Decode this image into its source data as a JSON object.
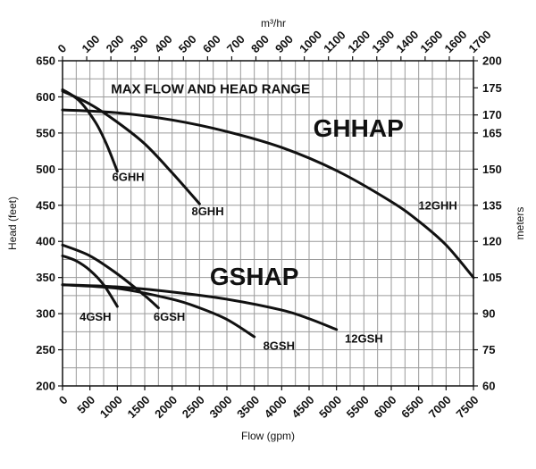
{
  "chart_data": {
    "type": "line",
    "title": "MAX FLOW AND HEAD RANGE",
    "xlabel": "Flow (gpm)",
    "ylabel": "Head (feet)",
    "x2label": "m³/hr",
    "y2label": "meters",
    "xlim": [
      0,
      7500
    ],
    "ylim": [
      200,
      650
    ],
    "x2lim": [
      0,
      1700
    ],
    "y2lim": [
      60,
      200
    ],
    "x_ticks": [
      "0",
      "500",
      "1000",
      "1500",
      "2000",
      "2500",
      "3000",
      "3500",
      "4000",
      "4500",
      "5000",
      "5500",
      "6000",
      "6500",
      "7000",
      "7500"
    ],
    "y_ticks": [
      "200",
      "250",
      "300",
      "350",
      "400",
      "450",
      "500",
      "550",
      "600",
      "650"
    ],
    "x2_ticks": [
      "0",
      "100",
      "200",
      "300",
      "400",
      "500",
      "600",
      "700",
      "800",
      "900",
      "1000",
      "1100",
      "1200",
      "1300",
      "1400",
      "1500",
      "1600",
      "1700"
    ],
    "y2_ticks": [
      "60",
      "75",
      "90",
      "105",
      "120",
      "135",
      "150",
      "165",
      "170",
      "175",
      "200"
    ],
    "grid": true,
    "series": [
      {
        "name": "6GHH",
        "x": [
          0,
          300,
          600,
          800,
          1000
        ],
        "y": [
          610,
          595,
          565,
          535,
          497
        ]
      },
      {
        "name": "8GHH",
        "x": [
          0,
          500,
          1000,
          1500,
          2000,
          2500
        ],
        "y": [
          608,
          590,
          565,
          535,
          495,
          452
        ]
      },
      {
        "name": "12GHH",
        "x": [
          0,
          1000,
          2000,
          3000,
          4000,
          5000,
          6000,
          6500,
          7000,
          7500
        ],
        "y": [
          582,
          578,
          568,
          552,
          530,
          498,
          455,
          428,
          395,
          350
        ]
      },
      {
        "name": "4GSH",
        "x": [
          0,
          250,
          500,
          750,
          1000
        ],
        "y": [
          380,
          373,
          360,
          340,
          310
        ]
      },
      {
        "name": "6GSH",
        "x": [
          0,
          500,
          1000,
          1500,
          1750
        ],
        "y": [
          395,
          380,
          355,
          325,
          308
        ]
      },
      {
        "name": "8GSH",
        "x": [
          0,
          1000,
          2000,
          2500,
          3000,
          3500
        ],
        "y": [
          340,
          335,
          320,
          308,
          292,
          268
        ]
      },
      {
        "name": "12GSH",
        "x": [
          0,
          1000,
          2000,
          3000,
          4000,
          4500,
          5000
        ],
        "y": [
          340,
          337,
          330,
          320,
          305,
          293,
          278
        ]
      }
    ],
    "curve_labels": [
      {
        "text": "6GHH",
        "x": 1200,
        "y": 484
      },
      {
        "text": "8GHH",
        "x": 2650,
        "y": 436
      },
      {
        "text": "12GHH",
        "x": 6850,
        "y": 444
      },
      {
        "text": "4GSH",
        "x": 600,
        "y": 290
      },
      {
        "text": "6GSH",
        "x": 1950,
        "y": 290
      },
      {
        "text": "8GSH",
        "x": 3950,
        "y": 250
      },
      {
        "text": "12GSH",
        "x": 5500,
        "y": 260
      }
    ],
    "group_labels": [
      {
        "text": "GHHAP",
        "x": 5400,
        "y": 545
      },
      {
        "text": "GSHAP",
        "x": 3500,
        "y": 340
      }
    ]
  }
}
